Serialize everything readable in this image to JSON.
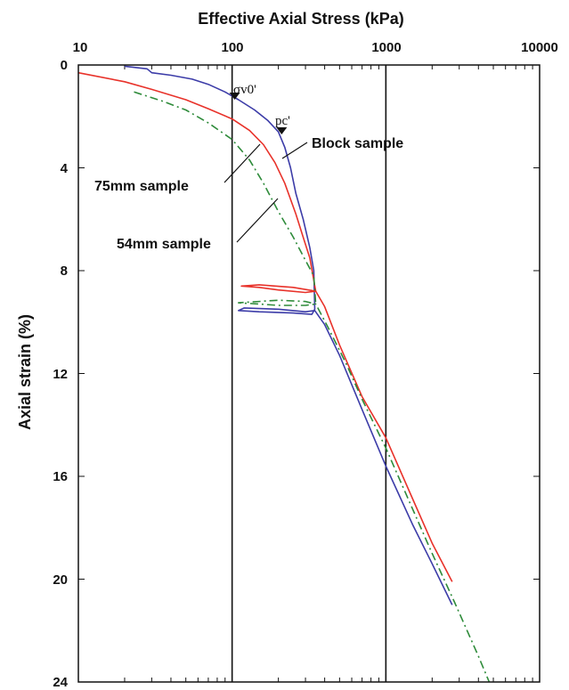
{
  "chart_data": {
    "type": "line",
    "xlabel": "Effective Axial Stress (kPa)",
    "ylabel": "Axial strain (%)",
    "x_scale": "log",
    "xlim": [
      10,
      10000
    ],
    "ylim": [
      0,
      24
    ],
    "y_inverted": true,
    "x_ticks": [
      "10",
      "100",
      "1000",
      "10000"
    ],
    "y_ticks": [
      "0",
      "4",
      "8",
      "12",
      "16",
      "20",
      "24"
    ],
    "reference_lines_x": [
      100,
      1000
    ],
    "annotations": {
      "sigma_label": "σv0'",
      "pc_label": "pc'",
      "block_label": "Block sample",
      "mm75_label": "75mm sample",
      "mm54_label": "54mm sample"
    },
    "markers": [
      {
        "name": "sigma-v0",
        "x": 104,
        "y": 1.35
      },
      {
        "name": "pc",
        "x": 210,
        "y": 2.7
      }
    ],
    "series": [
      {
        "name": "Block sample",
        "color": "#3c3ca8",
        "dash": "",
        "points": [
          [
            20,
            0.05
          ],
          [
            28,
            0.15
          ],
          [
            30,
            0.3
          ],
          [
            40,
            0.4
          ],
          [
            55,
            0.55
          ],
          [
            70,
            0.75
          ],
          [
            90,
            1.05
          ],
          [
            110,
            1.35
          ],
          [
            140,
            1.75
          ],
          [
            170,
            2.15
          ],
          [
            200,
            2.6
          ],
          [
            220,
            3.2
          ],
          [
            240,
            4.0
          ],
          [
            260,
            5.0
          ],
          [
            290,
            6.0
          ],
          [
            320,
            7.1
          ],
          [
            340,
            8.0
          ],
          [
            345,
            9.5
          ],
          [
            330,
            9.7
          ],
          [
            250,
            9.65
          ],
          [
            150,
            9.6
          ],
          [
            110,
            9.55
          ],
          [
            120,
            9.45
          ],
          [
            200,
            9.5
          ],
          [
            300,
            9.6
          ],
          [
            345,
            9.55
          ],
          [
            400,
            10.1
          ],
          [
            500,
            11.3
          ],
          [
            700,
            13.4
          ],
          [
            1000,
            15.6
          ],
          [
            1500,
            17.9
          ],
          [
            2000,
            19.4
          ],
          [
            2700,
            21.0
          ]
        ]
      },
      {
        "name": "75mm sample",
        "color": "#e8322a",
        "dash": "",
        "points": [
          [
            10,
            0.3
          ],
          [
            20,
            0.65
          ],
          [
            30,
            0.95
          ],
          [
            50,
            1.35
          ],
          [
            70,
            1.7
          ],
          [
            100,
            2.1
          ],
          [
            130,
            2.55
          ],
          [
            160,
            3.1
          ],
          [
            190,
            3.8
          ],
          [
            220,
            4.6
          ],
          [
            260,
            5.8
          ],
          [
            290,
            6.7
          ],
          [
            320,
            7.5
          ],
          [
            350,
            8.8
          ],
          [
            300,
            8.85
          ],
          [
            200,
            8.75
          ],
          [
            150,
            8.65
          ],
          [
            115,
            8.6
          ],
          [
            150,
            8.55
          ],
          [
            250,
            8.65
          ],
          [
            350,
            8.8
          ],
          [
            400,
            9.4
          ],
          [
            500,
            10.9
          ],
          [
            700,
            12.9
          ],
          [
            1000,
            14.5
          ],
          [
            1500,
            16.9
          ],
          [
            2000,
            18.6
          ],
          [
            2700,
            20.1
          ]
        ]
      },
      {
        "name": "54mm sample",
        "color": "#2e8b3a",
        "dash": "9 4 2 4",
        "points": [
          [
            23,
            1.05
          ],
          [
            35,
            1.4
          ],
          [
            50,
            1.75
          ],
          [
            70,
            2.25
          ],
          [
            100,
            2.9
          ],
          [
            130,
            3.7
          ],
          [
            160,
            4.6
          ],
          [
            200,
            5.7
          ],
          [
            250,
            6.7
          ],
          [
            300,
            7.6
          ],
          [
            340,
            8.2
          ],
          [
            350,
            9.3
          ],
          [
            300,
            9.35
          ],
          [
            200,
            9.35
          ],
          [
            150,
            9.3
          ],
          [
            110,
            9.25
          ],
          [
            200,
            9.15
          ],
          [
            300,
            9.2
          ],
          [
            350,
            9.3
          ],
          [
            420,
            10.2
          ],
          [
            550,
            11.6
          ],
          [
            700,
            13.0
          ],
          [
            1000,
            14.9
          ],
          [
            1500,
            17.3
          ],
          [
            2000,
            19.0
          ],
          [
            2800,
            20.9
          ],
          [
            4000,
            23.0
          ],
          [
            4700,
            24.0
          ]
        ]
      }
    ]
  }
}
